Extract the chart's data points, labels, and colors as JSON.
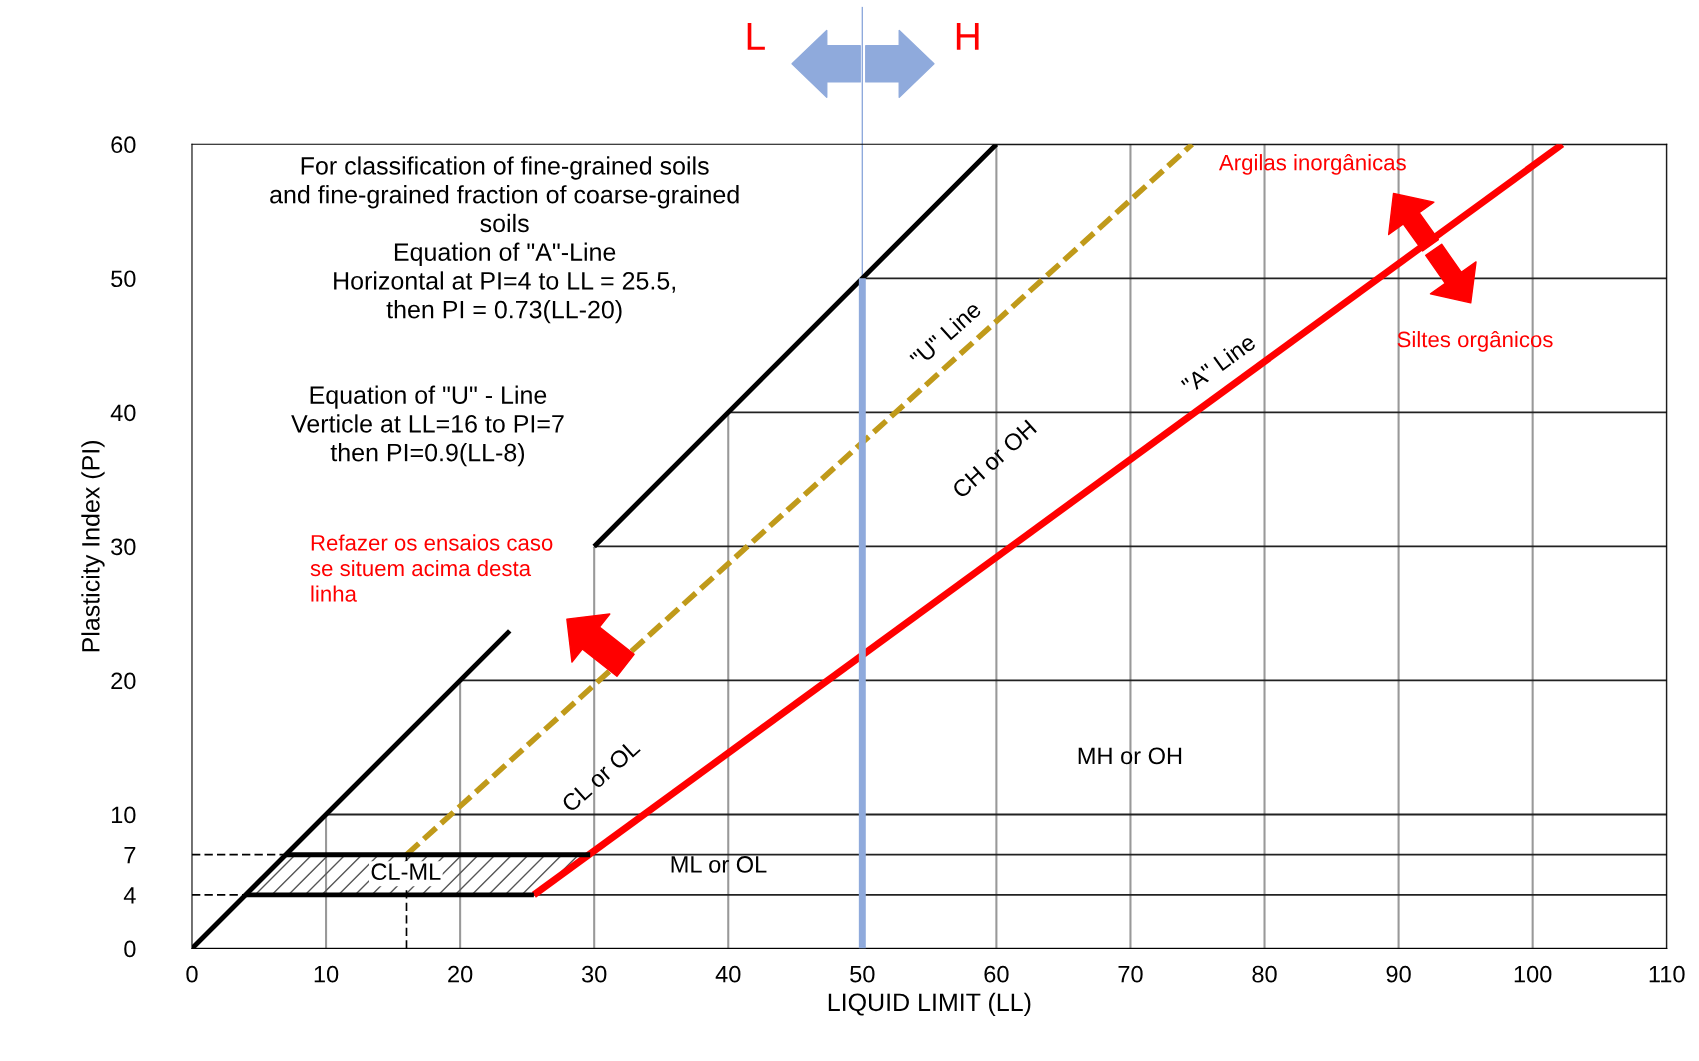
{
  "chart_data": {
    "type": "line",
    "xlabel": "LIQUID LIMIT (LL)",
    "ylabel": "Plasticity Index (PI)",
    "xlim": [
      0,
      110
    ],
    "xticks": [
      0,
      10,
      20,
      30,
      40,
      50,
      60,
      70,
      80,
      90,
      100,
      110
    ],
    "ylim": [
      0,
      60
    ],
    "yticks": [
      0,
      4,
      7,
      10,
      20,
      30,
      40,
      50,
      60
    ],
    "grid": true,
    "marker": "none",
    "series": [
      {
        "color": "#000000",
        "x": [
          0,
          23.7,
          27,
          30,
          60
        ],
        "values": [
          0,
          23.7,
          null,
          30,
          60
        ]
      },
      {
        "color": "#c09a1a",
        "line_style": "dashed",
        "x": [
          16,
          74.6
        ],
        "values": [
          7,
          60
        ]
      },
      {
        "color": "#ff0000",
        "x": [
          25.5,
          102.2
        ],
        "values": [
          4,
          60
        ]
      },
      {
        "color": "#000000",
        "x": [
          4,
          25.5
        ],
        "values": [
          4,
          4
        ]
      },
      {
        "color": "#000000",
        "x": [
          7,
          29.7
        ],
        "values": [
          7,
          7
        ]
      },
      {
        "color": "#000000",
        "line_style": "dashed",
        "x": [
          0,
          7
        ],
        "values": [
          7,
          7
        ]
      },
      {
        "color": "#000000",
        "line_style": "dashed",
        "x": [
          0,
          4
        ],
        "values": [
          4,
          4
        ]
      },
      {
        "color": "#000000",
        "line_style": "dashed",
        "x": [
          16,
          16
        ],
        "values": [
          0,
          7
        ]
      },
      {
        "color": "#8faadc",
        "x": [
          50,
          50
        ],
        "values": [
          0,
          50
        ]
      }
    ],
    "ref_lines": [
      {
        "axis": "x",
        "value": 50,
        "color": "#8faadc"
      }
    ],
    "annotations": [
      "For classification of fine-grained soils\nand fine-grained fraction of coarse-grained\nsoils\nEquation of \"A\"-Line\nHorizontal at PI=4 to LL = 25.5,\nthen PI = 0.73(LL-20)",
      "Equation of \"U\" - Line\nVerticle at LL=16 to PI=7\nthen PI=0.9(LL-8)",
      "Refazer os ensaios caso\nse situem acima desta\nlinha",
      "Argilas inorgânicas",
      "Siltes orgânicos",
      "L",
      "H",
      "\"U\" Line",
      "\"A\" Line",
      "CH or OH",
      "CL or OL",
      "MH or OH",
      "ML or OL",
      "CL-ML"
    ]
  }
}
